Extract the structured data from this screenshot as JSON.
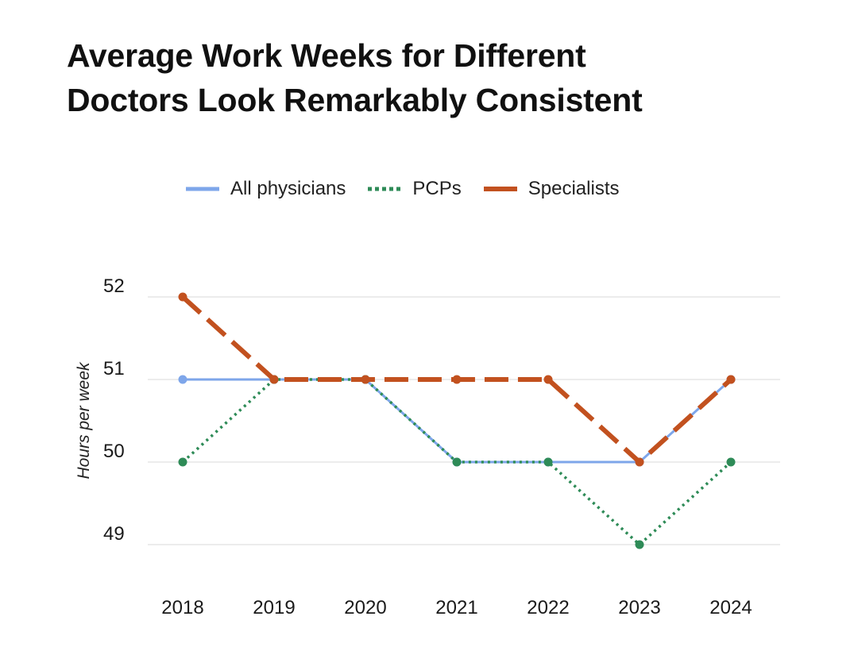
{
  "chart_data": {
    "type": "line",
    "title_lines": [
      "Average Work Weeks for Different",
      "Doctors Look Remarkably Consistent"
    ],
    "xlabel": "",
    "ylabel": "Hours per week",
    "categories": [
      "2018",
      "2019",
      "2020",
      "2021",
      "2022",
      "2023",
      "2024"
    ],
    "ylim": [
      49,
      52
    ],
    "yticks": [
      52,
      51,
      50,
      49
    ],
    "grid": true,
    "legend_position": "top",
    "series": [
      {
        "name": "All physicians",
        "values": [
          51,
          51,
          51,
          50,
          50,
          50,
          51
        ],
        "color": "#7ea6ea",
        "style": "solid"
      },
      {
        "name": "PCPs",
        "values": [
          50,
          51,
          51,
          50,
          50,
          49,
          50
        ],
        "color": "#2e8b57",
        "style": "dotted"
      },
      {
        "name": "Specialists",
        "values": [
          52,
          51,
          51,
          51,
          51,
          50,
          51
        ],
        "color": "#c2511f",
        "style": "dashed"
      }
    ]
  }
}
